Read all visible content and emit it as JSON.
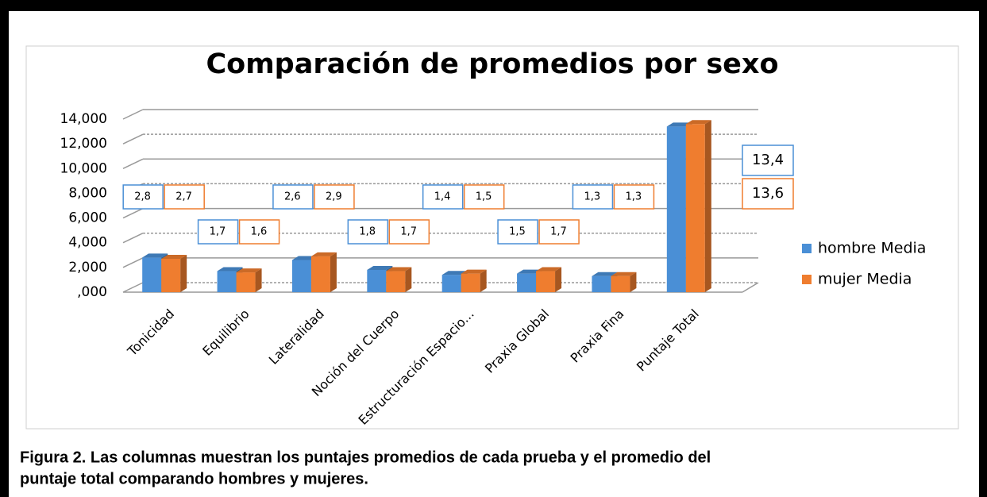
{
  "chart_data": {
    "type": "bar3d",
    "title": "Comparación de promedios por sexo",
    "categories": [
      "Tonicidad",
      "Equilibrio",
      "Lateralidad",
      "Noción del Cuerpo",
      "Estructuración Espacio...",
      "Praxia Global",
      "Praxia Fina",
      "Puntaje Total"
    ],
    "series": [
      {
        "name": "hombre Media",
        "color": "#4a8fd6",
        "values": [
          2.8,
          1.7,
          2.6,
          1.8,
          1.4,
          1.5,
          1.3,
          13.4
        ],
        "value_labels": [
          "2,8",
          "1,7",
          "2,6",
          "1,8",
          "1,4",
          "1,5",
          "1,3",
          "13,4"
        ]
      },
      {
        "name": "mujer Media",
        "color": "#ef7d2f",
        "values": [
          2.7,
          1.6,
          2.9,
          1.7,
          1.5,
          1.7,
          1.3,
          13.6
        ],
        "value_labels": [
          "2,7",
          "1,6",
          "2,9",
          "1,7",
          "1,5",
          "1,7",
          "1,3",
          "13,6"
        ]
      }
    ],
    "ylim": [
      0,
      14
    ],
    "yticks": [
      {
        "value": 0,
        "label": ",000"
      },
      {
        "value": 2,
        "label": "2,000"
      },
      {
        "value": 4,
        "label": "4,000"
      },
      {
        "value": 6,
        "label": "6,000"
      },
      {
        "value": 8,
        "label": "8,000"
      },
      {
        "value": 10,
        "label": "10,000"
      },
      {
        "value": 12,
        "label": "12,000"
      },
      {
        "value": 14,
        "label": "14,000"
      }
    ],
    "grid": true,
    "legend": "right"
  },
  "caption": [
    "Figura 2. Las columnas muestran los puntajes promedios de cada prueba y el promedio del",
    "puntaje total comparando hombres y mujeres."
  ]
}
